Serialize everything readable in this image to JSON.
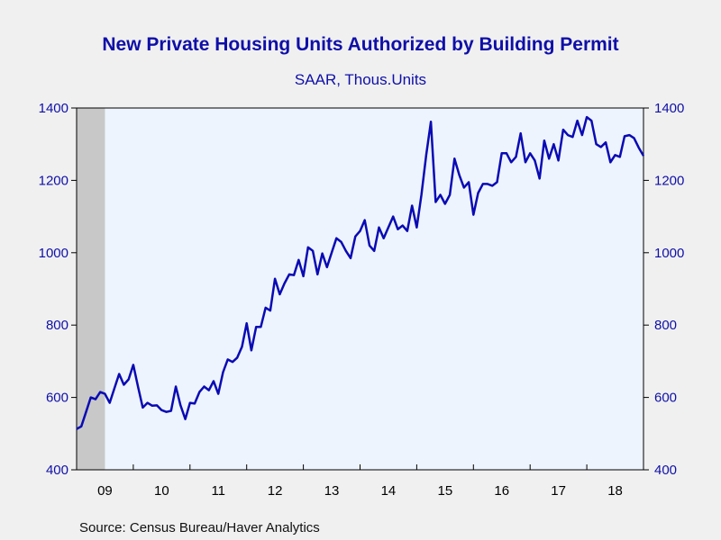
{
  "title": "New Private Housing Units Authorized by Building Permit",
  "subtitle": "SAAR, Thous.Units",
  "source": "Source:  Census Bureau/Haver Analytics",
  "colors": {
    "line": "#0a0ab4",
    "text": "#0f0fa8",
    "plot_bg": "#edf4fd",
    "recession": "#c8c8c8"
  },
  "chart_data": {
    "type": "line",
    "title": "New Private Housing Units Authorized by Building Permit",
    "subtitle": "SAAR, Thous.Units",
    "ylim": [
      400,
      1400
    ],
    "yticks": [
      400,
      600,
      800,
      1000,
      1200,
      1400
    ],
    "xlim": [
      2009.0,
      2019.0
    ],
    "x_tick_labels": [
      "09",
      "10",
      "11",
      "12",
      "13",
      "14",
      "15",
      "16",
      "17",
      "18"
    ],
    "recession_shading": [
      [
        2009.0,
        2009.5
      ]
    ],
    "grid": false,
    "series": [
      {
        "x_start": 2009.0,
        "step": 0.0833333,
        "values": [
          513,
          520,
          560,
          600,
          595,
          615,
          610,
          585,
          625,
          665,
          635,
          650,
          690,
          630,
          572,
          585,
          577,
          578,
          565,
          560,
          563,
          630,
          578,
          540,
          585,
          583,
          615,
          630,
          620,
          645,
          610,
          670,
          705,
          698,
          710,
          740,
          805,
          730,
          795,
          795,
          848,
          840,
          928,
          885,
          915,
          940,
          938,
          980,
          935,
          1015,
          1005,
          940,
          998,
          960,
          1000,
          1040,
          1030,
          1005,
          985,
          1045,
          1060,
          1090,
          1020,
          1005,
          1070,
          1040,
          1070,
          1100,
          1065,
          1075,
          1060,
          1130,
          1070,
          1160,
          1270,
          1362,
          1140,
          1160,
          1135,
          1160,
          1260,
          1215,
          1180,
          1195,
          1105,
          1165,
          1190,
          1190,
          1185,
          1195,
          1275,
          1275,
          1250,
          1265,
          1330,
          1250,
          1275,
          1255,
          1205,
          1310,
          1260,
          1300,
          1255,
          1340,
          1325,
          1320,
          1365,
          1325,
          1375,
          1365,
          1300,
          1292,
          1305,
          1250,
          1270,
          1265,
          1322,
          1325,
          1317,
          1290,
          1268
        ]
      }
    ]
  }
}
